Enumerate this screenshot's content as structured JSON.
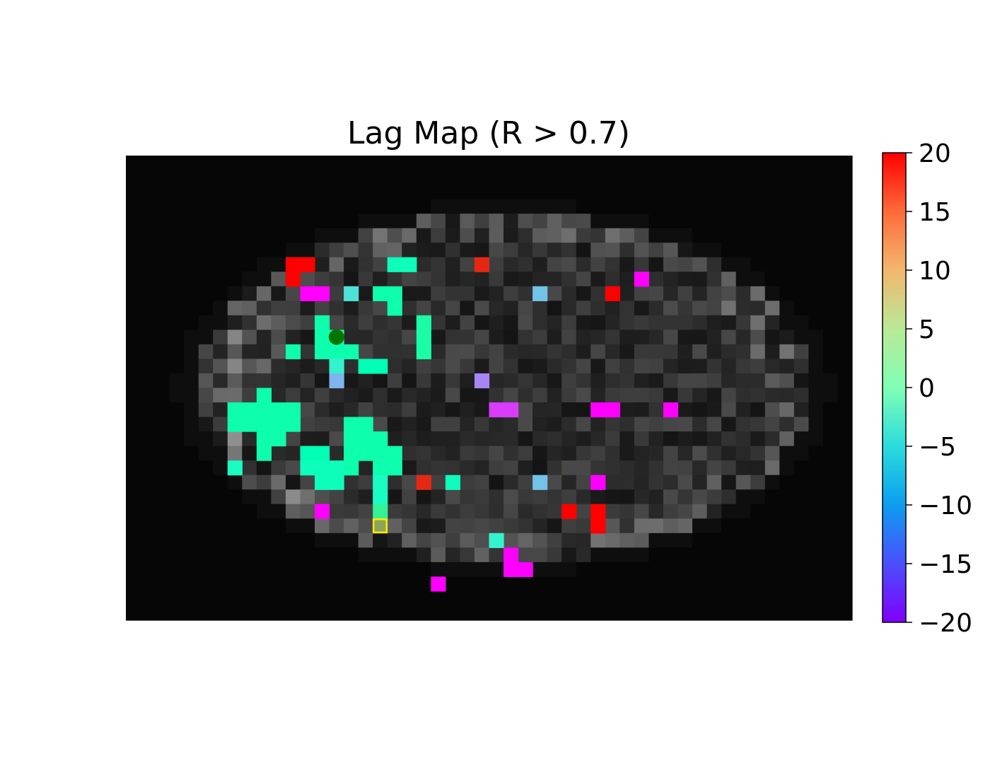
{
  "chart_data": {
    "type": "heatmap",
    "title": "Lag Map (R > 0.7)",
    "grid": {
      "rows": 32,
      "cols": 50
    },
    "background": "grayscale anatomical slice",
    "colormap": "rainbow",
    "colorbar": {
      "vmin": -20,
      "vmax": 20,
      "ticks": [
        20,
        15,
        10,
        5,
        0,
        -5,
        -10,
        -15,
        -20
      ],
      "tick_labels": [
        "20",
        "15",
        "10",
        "5",
        "0",
        "−5",
        "−10",
        "−15",
        "−20"
      ]
    },
    "lag_voxels": [
      {
        "row": 7,
        "col": 11,
        "lag": 20
      },
      {
        "row": 7,
        "col": 12,
        "lag": 20
      },
      {
        "row": 7,
        "col": 18,
        "lag": -1
      },
      {
        "row": 7,
        "col": 19,
        "lag": -1
      },
      {
        "row": 7,
        "col": 24,
        "lag": 18
      },
      {
        "row": 8,
        "col": 11,
        "lag": 20
      },
      {
        "row": 8,
        "col": 35,
        "lag": -20
      },
      {
        "row": 9,
        "col": 12,
        "lag": -20
      },
      {
        "row": 9,
        "col": 13,
        "lag": -20
      },
      {
        "row": 9,
        "col": 15,
        "lag": -6
      },
      {
        "row": 9,
        "col": 17,
        "lag": 1
      },
      {
        "row": 9,
        "col": 18,
        "lag": 1
      },
      {
        "row": 9,
        "col": 28,
        "lag": -9
      },
      {
        "row": 9,
        "col": 33,
        "lag": 20
      },
      {
        "row": 10,
        "col": 18,
        "lag": 1
      },
      {
        "row": 11,
        "col": 13,
        "lag": 1
      },
      {
        "row": 11,
        "col": 20,
        "lag": 2
      },
      {
        "row": 12,
        "col": 13,
        "lag": 1
      },
      {
        "row": 12,
        "col": 14,
        "lag": 1
      },
      {
        "row": 12,
        "col": 20,
        "lag": 2
      },
      {
        "row": 13,
        "col": 11,
        "lag": 1
      },
      {
        "row": 13,
        "col": 13,
        "lag": 1
      },
      {
        "row": 13,
        "col": 14,
        "lag": 1
      },
      {
        "row": 13,
        "col": 15,
        "lag": 1
      },
      {
        "row": 13,
        "col": 20,
        "lag": 2
      },
      {
        "row": 14,
        "col": 14,
        "lag": -4
      },
      {
        "row": 14,
        "col": 16,
        "lag": 0
      },
      {
        "row": 14,
        "col": 17,
        "lag": 0
      },
      {
        "row": 15,
        "col": 14,
        "lag": -10
      },
      {
        "row": 15,
        "col": 24,
        "lag": -13
      },
      {
        "row": 16,
        "col": 9,
        "lag": 1
      },
      {
        "row": 17,
        "col": 7,
        "lag": 1
      },
      {
        "row": 17,
        "col": 8,
        "lag": 1
      },
      {
        "row": 17,
        "col": 9,
        "lag": 1
      },
      {
        "row": 17,
        "col": 10,
        "lag": 1
      },
      {
        "row": 17,
        "col": 11,
        "lag": 1
      },
      {
        "row": 17,
        "col": 25,
        "lag": -17
      },
      {
        "row": 17,
        "col": 26,
        "lag": -17
      },
      {
        "row": 17,
        "col": 32,
        "lag": -20
      },
      {
        "row": 17,
        "col": 33,
        "lag": -20
      },
      {
        "row": 17,
        "col": 37,
        "lag": -20
      },
      {
        "row": 18,
        "col": 7,
        "lag": 1
      },
      {
        "row": 18,
        "col": 8,
        "lag": 1
      },
      {
        "row": 18,
        "col": 9,
        "lag": 1
      },
      {
        "row": 18,
        "col": 10,
        "lag": 1
      },
      {
        "row": 18,
        "col": 11,
        "lag": 1
      },
      {
        "row": 18,
        "col": 15,
        "lag": 1
      },
      {
        "row": 18,
        "col": 16,
        "lag": 1
      },
      {
        "row": 19,
        "col": 9,
        "lag": 1
      },
      {
        "row": 19,
        "col": 10,
        "lag": 1
      },
      {
        "row": 19,
        "col": 15,
        "lag": 1
      },
      {
        "row": 19,
        "col": 16,
        "lag": 1
      },
      {
        "row": 19,
        "col": 17,
        "lag": 1
      },
      {
        "row": 20,
        "col": 9,
        "lag": 1
      },
      {
        "row": 20,
        "col": 12,
        "lag": 0
      },
      {
        "row": 20,
        "col": 13,
        "lag": 0
      },
      {
        "row": 20,
        "col": 15,
        "lag": 1
      },
      {
        "row": 20,
        "col": 16,
        "lag": 1
      },
      {
        "row": 20,
        "col": 17,
        "lag": 1
      },
      {
        "row": 20,
        "col": 18,
        "lag": 1
      },
      {
        "row": 21,
        "col": 7,
        "lag": -2
      },
      {
        "row": 21,
        "col": 12,
        "lag": -1
      },
      {
        "row": 21,
        "col": 13,
        "lag": -1
      },
      {
        "row": 21,
        "col": 14,
        "lag": -1
      },
      {
        "row": 21,
        "col": 15,
        "lag": 1
      },
      {
        "row": 21,
        "col": 17,
        "lag": 1
      },
      {
        "row": 21,
        "col": 18,
        "lag": 1
      },
      {
        "row": 22,
        "col": 13,
        "lag": -1
      },
      {
        "row": 22,
        "col": 14,
        "lag": -1
      },
      {
        "row": 22,
        "col": 17,
        "lag": -2
      },
      {
        "row": 22,
        "col": 20,
        "lag": 18
      },
      {
        "row": 22,
        "col": 22,
        "lag": -1
      },
      {
        "row": 22,
        "col": 28,
        "lag": -9
      },
      {
        "row": 22,
        "col": 32,
        "lag": -20
      },
      {
        "row": 23,
        "col": 17,
        "lag": -2
      },
      {
        "row": 24,
        "col": 13,
        "lag": -20
      },
      {
        "row": 24,
        "col": 17,
        "lag": 4
      },
      {
        "row": 24,
        "col": 30,
        "lag": 20
      },
      {
        "row": 24,
        "col": 32,
        "lag": 20
      },
      {
        "row": 25,
        "col": 17,
        "lag": 11
      },
      {
        "row": 25,
        "col": 32,
        "lag": 20
      },
      {
        "row": 26,
        "col": 25,
        "lag": -4
      },
      {
        "row": 27,
        "col": 26,
        "lag": -20
      },
      {
        "row": 28,
        "col": 26,
        "lag": -20
      },
      {
        "row": 28,
        "col": 27,
        "lag": -20
      },
      {
        "row": 29,
        "col": 21,
        "lag": -20
      }
    ],
    "markers": [
      {
        "type": "circle",
        "row": 12,
        "col": 14,
        "color": "#007500"
      },
      {
        "type": "square",
        "row": 25,
        "col": 17,
        "color": "#ffea00"
      }
    ]
  }
}
